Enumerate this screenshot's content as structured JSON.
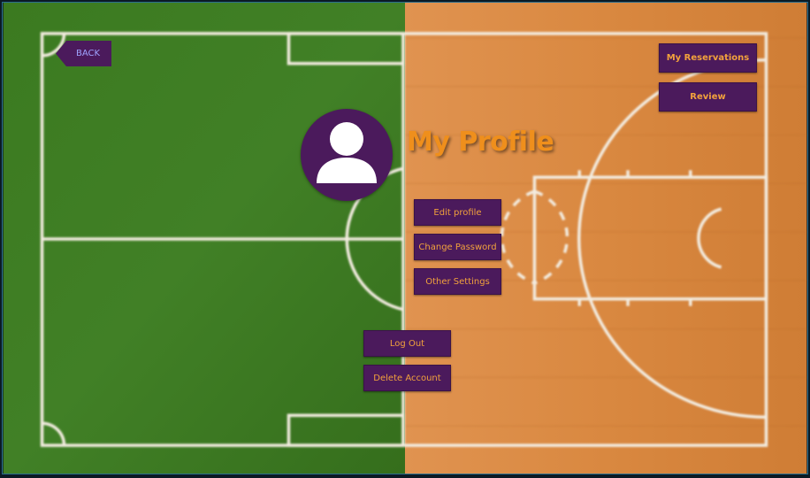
{
  "nav": {
    "back_label": "BACK"
  },
  "header": {
    "title": "My Profile",
    "reservations_label": "My Reservations",
    "review_label": "Review"
  },
  "profile_actions": {
    "edit_profile_label": "Edit profile",
    "change_password_label": "Change Password",
    "other_settings_label": "Other Settings"
  },
  "account_actions": {
    "logout_label": "Log Out",
    "delete_account_label": "Delete Account"
  },
  "colors": {
    "button_bg": "#4b1a5c",
    "button_text": "#f2a23c",
    "title": "#ef8f1c",
    "grass": "#3f7a22",
    "wood": "#d98a3f",
    "court_lines": "#f3ece0"
  }
}
